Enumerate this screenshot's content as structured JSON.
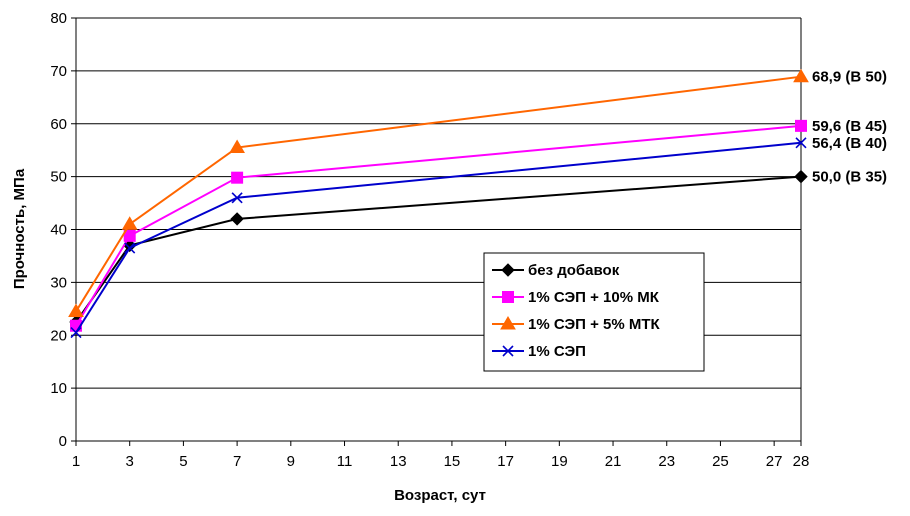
{
  "chart_data": {
    "type": "line",
    "title": "",
    "xlabel": "Возраст, сут",
    "ylabel": "Прочность, МПа",
    "x_ticks": [
      "1",
      "3",
      "5",
      "7",
      "9",
      "11",
      "13",
      "15",
      "17",
      "19",
      "21",
      "23",
      "25",
      "27",
      "28"
    ],
    "y_ticks": [
      "0",
      "10",
      "20",
      "30",
      "40",
      "50",
      "60",
      "70",
      "80"
    ],
    "xlim": [
      1,
      28
    ],
    "ylim": [
      0,
      80
    ],
    "grid": "horizontal",
    "legend_position": "right-center",
    "x": [
      1,
      3,
      7,
      28
    ],
    "series": [
      {
        "name": "без добавок",
        "color": "#000000",
        "marker": "diamond",
        "values": [
          22.5,
          37.0,
          42.0,
          50.0
        ]
      },
      {
        "name": "1% СЭП + 10% МК",
        "color": "#FF00FF",
        "marker": "square",
        "values": [
          21.8,
          38.8,
          49.8,
          59.6
        ]
      },
      {
        "name": "1% СЭП + 5% МТК",
        "color": "#FF6600",
        "marker": "triangle",
        "values": [
          24.5,
          41.0,
          55.5,
          68.9
        ]
      },
      {
        "name": "1% СЭП",
        "color": "#0000CC",
        "marker": "x",
        "values": [
          20.5,
          36.5,
          46.0,
          56.4
        ]
      }
    ],
    "end_labels": [
      {
        "text": "68,9 (В 50)",
        "series": 2
      },
      {
        "text": "59,6 (В 45)",
        "series": 1
      },
      {
        "text": "56,4 (В 40)",
        "series": 3
      },
      {
        "text": "50,0 (В 35)",
        "series": 0
      }
    ]
  }
}
